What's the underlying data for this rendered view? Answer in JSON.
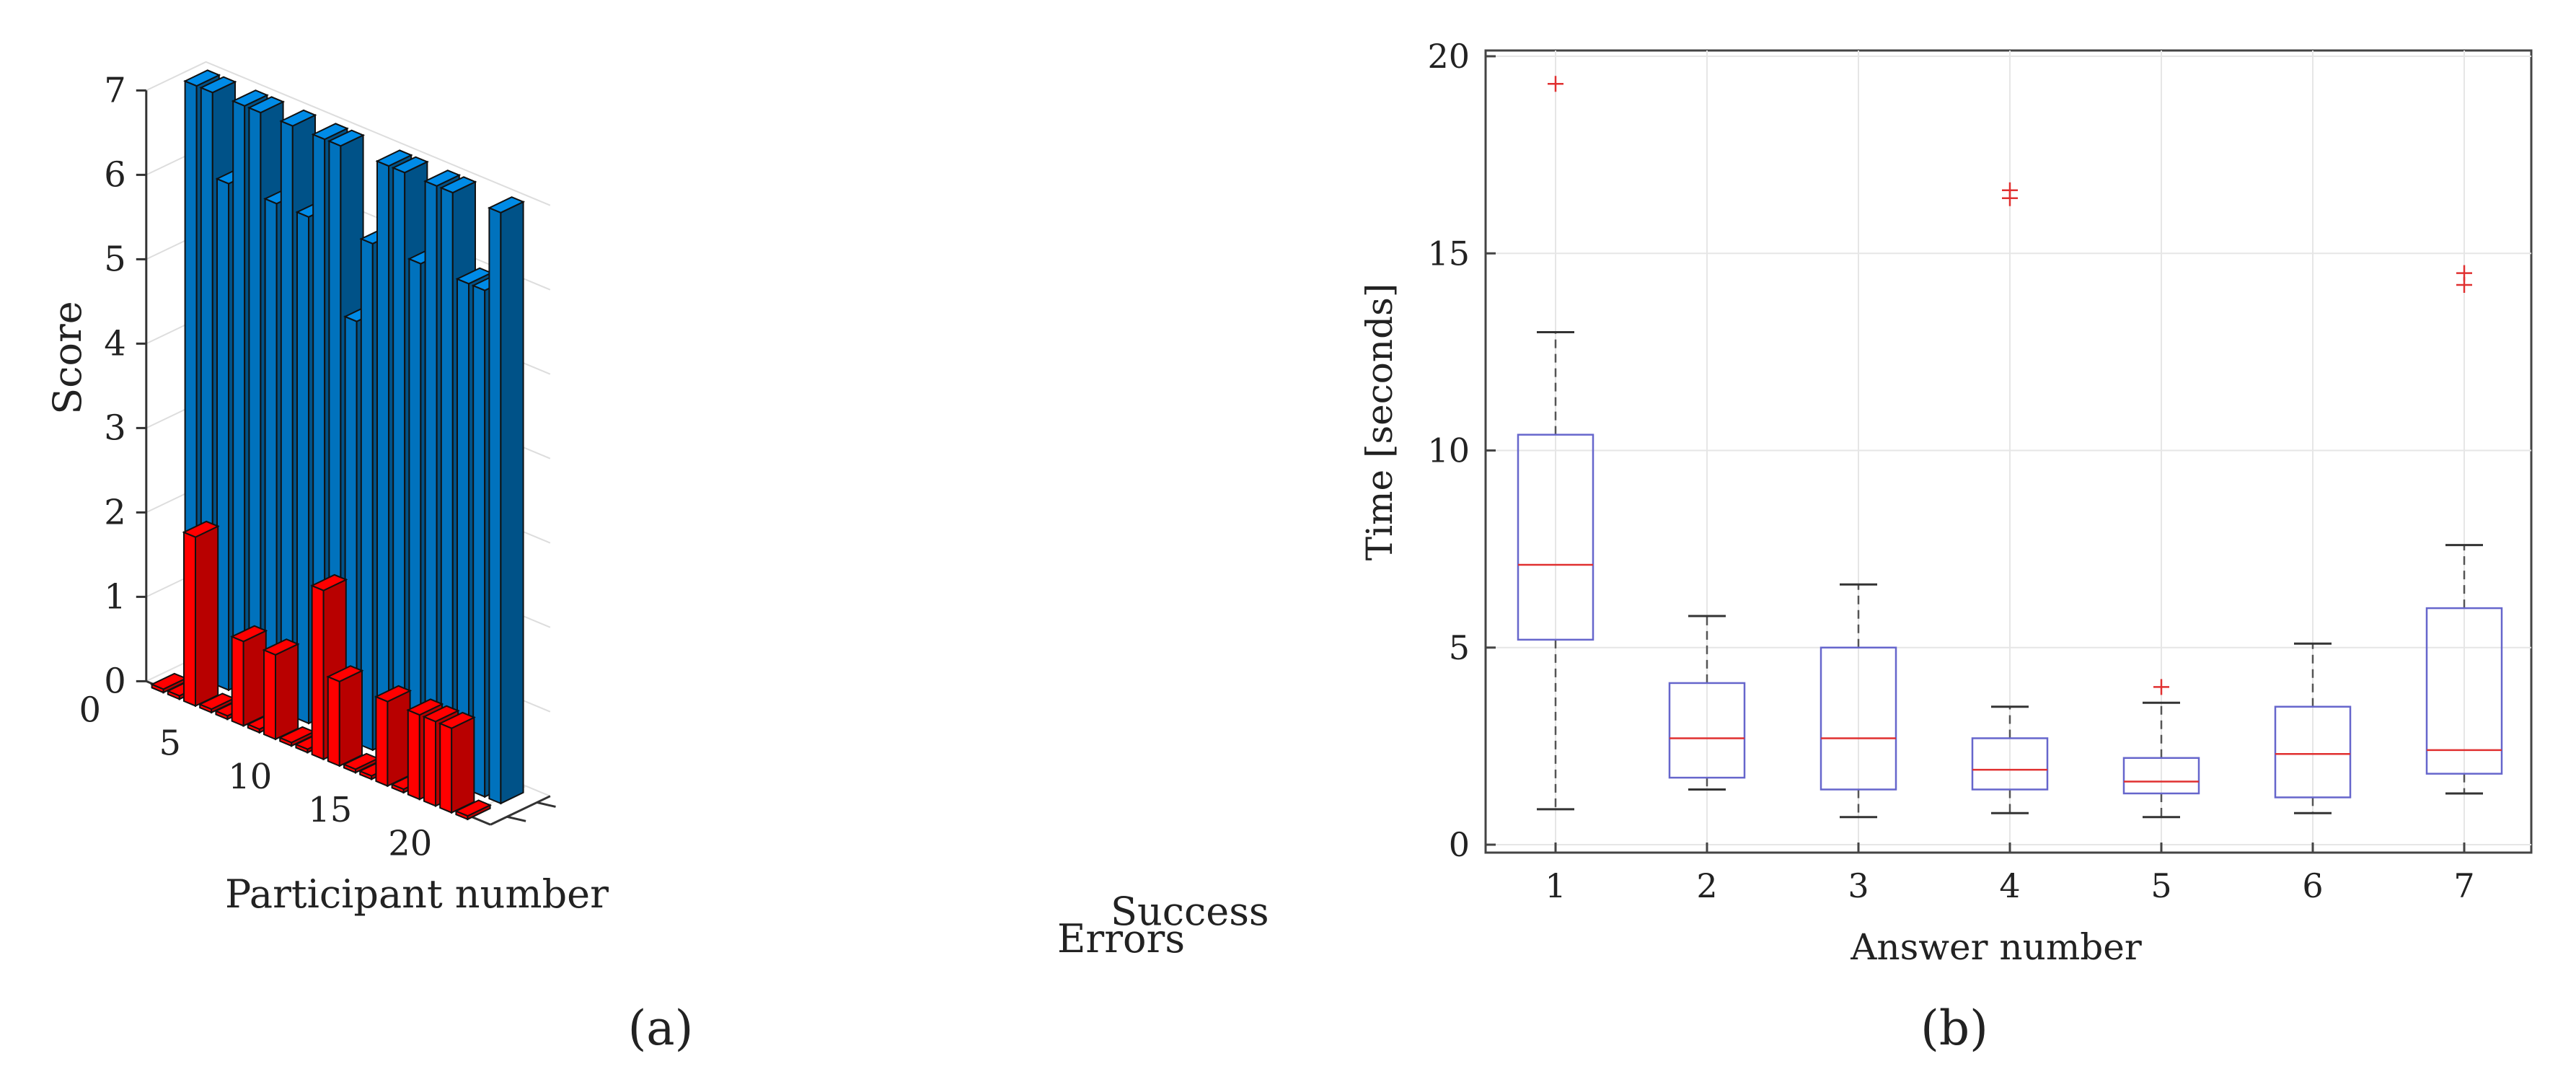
{
  "chart_data": [
    {
      "panel": "a",
      "caption": "(a)",
      "type": "bar",
      "projection": "3d",
      "xlabel": "Participant number",
      "ylabel": "",
      "zlabel": "Score",
      "zlim": [
        0,
        7
      ],
      "z_ticks": [
        "0",
        "1",
        "2",
        "3",
        "4",
        "5",
        "6",
        "7"
      ],
      "x_ticks": [
        {
          "value": 0,
          "label": "0"
        },
        {
          "value": 5,
          "label": "5"
        },
        {
          "value": 10,
          "label": "10"
        },
        {
          "value": 15,
          "label": "15"
        },
        {
          "value": 20,
          "label": "20"
        }
      ],
      "categories": [
        1,
        2,
        3,
        4,
        5,
        6,
        7,
        8,
        9,
        10,
        11,
        12,
        13,
        14,
        15,
        16,
        17,
        18,
        19,
        20
      ],
      "series": [
        {
          "name": "Success",
          "color": "#0072bd",
          "values": [
            7,
            7,
            6,
            7,
            7,
            6,
            7,
            6,
            7,
            7,
            5,
            6,
            7,
            7,
            6,
            7,
            7,
            6,
            6,
            7
          ]
        },
        {
          "name": "Errors",
          "color": "#ff0000",
          "values": [
            0,
            0,
            2,
            0,
            0,
            1,
            0,
            1,
            0,
            0,
            2,
            1,
            0,
            0,
            1,
            0,
            1,
            1,
            1,
            0
          ]
        }
      ]
    },
    {
      "panel": "b",
      "caption": "(b)",
      "type": "box",
      "xlabel": "Answer number",
      "ylabel": "Time [seconds]",
      "ylim": [
        0,
        20
      ],
      "y_ticks": [
        0,
        5,
        10,
        15,
        20
      ],
      "grid": true,
      "categories": [
        "1",
        "2",
        "3",
        "4",
        "5",
        "6",
        "7"
      ],
      "box_color": "#6666cc",
      "median_color": "#e03030",
      "boxes": [
        {
          "whisker_low": 0.9,
          "q1": 5.2,
          "median": 7.1,
          "q3": 10.4,
          "whisker_high": 13.0,
          "outliers": [
            19.3
          ]
        },
        {
          "whisker_low": 1.4,
          "q1": 1.7,
          "median": 2.7,
          "q3": 4.1,
          "whisker_high": 5.8,
          "outliers": []
        },
        {
          "whisker_low": 0.7,
          "q1": 1.4,
          "median": 2.7,
          "q3": 5.0,
          "whisker_high": 6.6,
          "outliers": []
        },
        {
          "whisker_low": 0.8,
          "q1": 1.4,
          "median": 1.9,
          "q3": 2.7,
          "whisker_high": 3.5,
          "outliers": [
            16.4,
            16.6
          ]
        },
        {
          "whisker_low": 0.7,
          "q1": 1.3,
          "median": 1.6,
          "q3": 2.2,
          "whisker_high": 3.6,
          "outliers": [
            4.0
          ]
        },
        {
          "whisker_low": 0.8,
          "q1": 1.2,
          "median": 2.3,
          "q3": 3.5,
          "whisker_high": 5.1,
          "outliers": []
        },
        {
          "whisker_low": 1.3,
          "q1": 1.8,
          "median": 2.4,
          "q3": 6.0,
          "whisker_high": 7.6,
          "outliers": [
            14.2,
            14.5
          ]
        }
      ]
    }
  ]
}
